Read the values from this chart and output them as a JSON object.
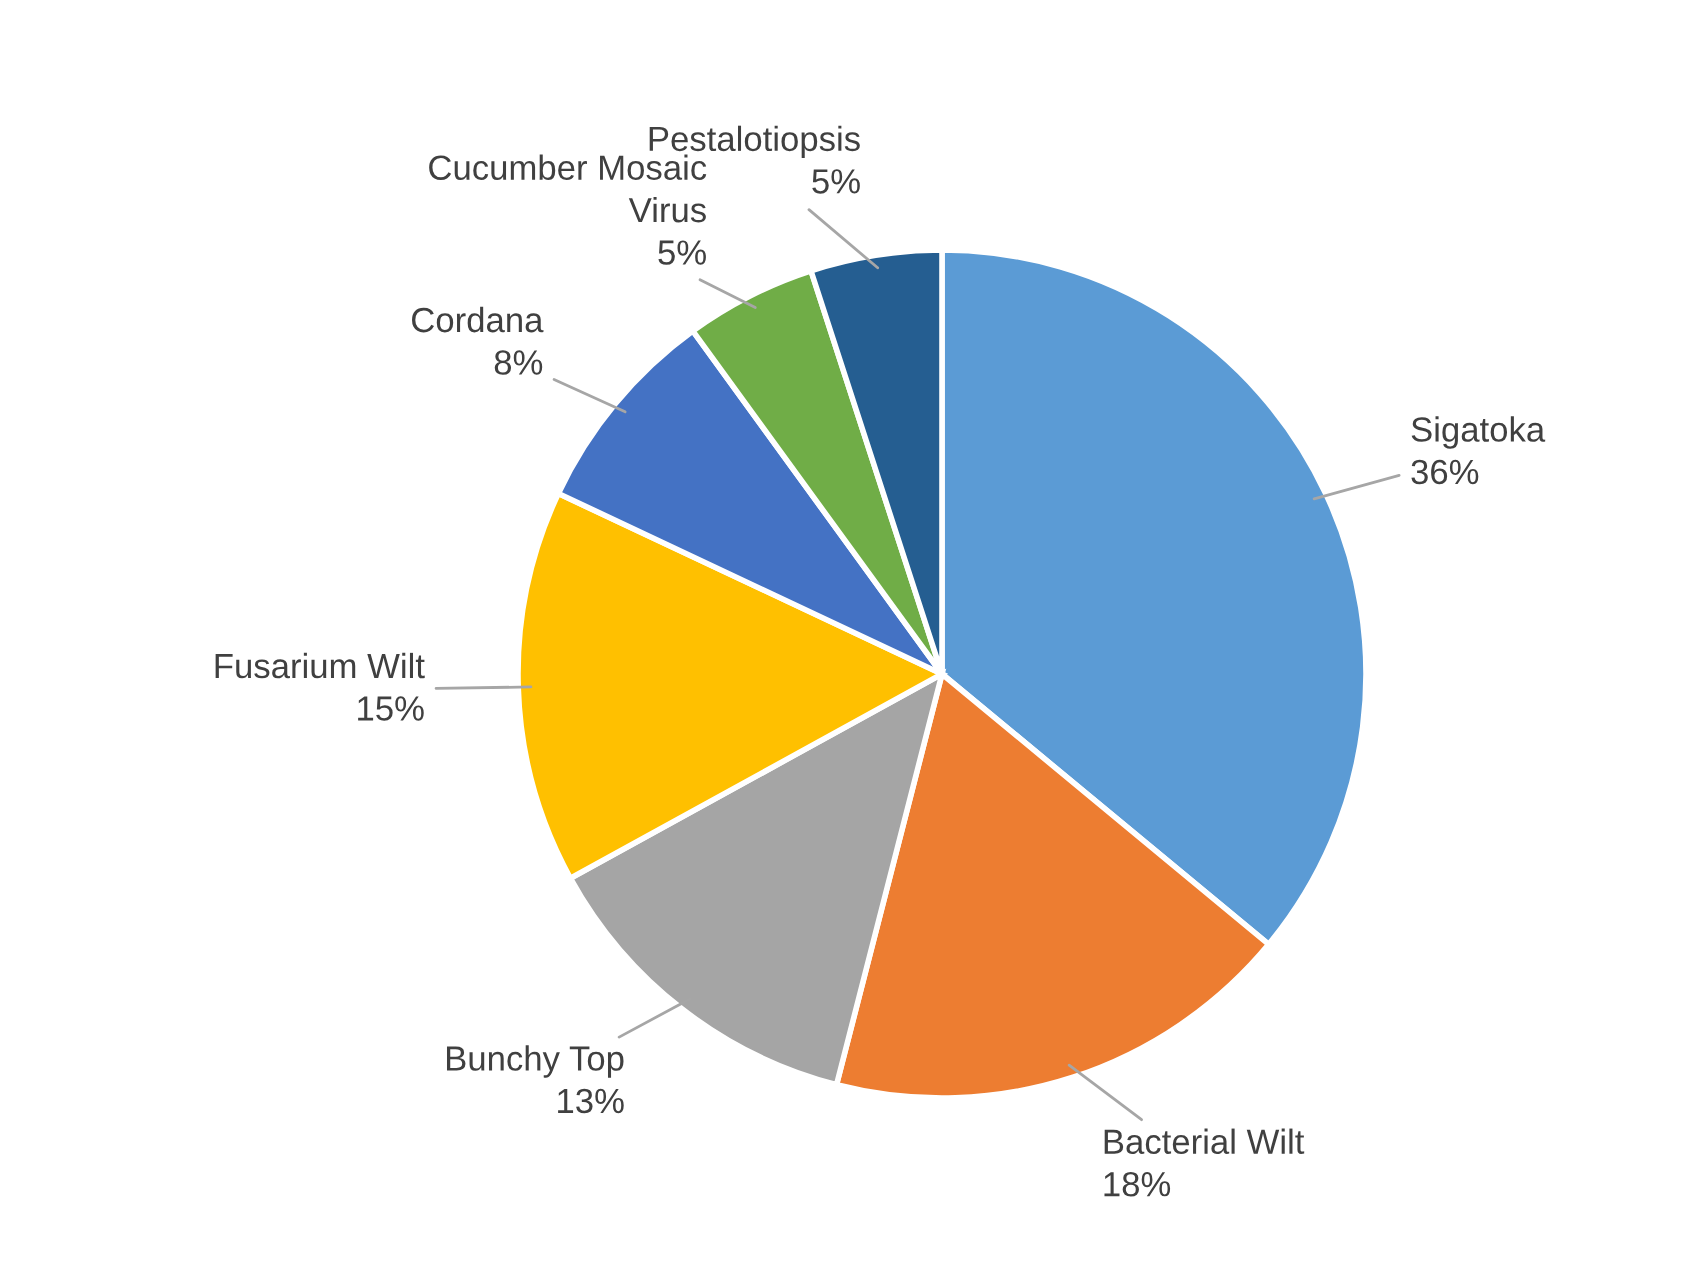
{
  "chart_data": {
    "type": "pie",
    "categories": [
      "Sigatoka",
      "Bacterial Wilt",
      "Bunchy Top",
      "Fusarium Wilt",
      "Cordana",
      "Cucumber Mosaic Virus",
      "Pestalotiopsis"
    ],
    "values": [
      36,
      18,
      13,
      15,
      8,
      5,
      5
    ],
    "colors": [
      "#5b9bd5",
      "#ed7d31",
      "#a5a5a5",
      "#ffc000",
      "#4472c4",
      "#70ad47",
      "#255e91"
    ],
    "value_labels": [
      "36%",
      "18%",
      "13%",
      "15%",
      "8%",
      "5%",
      "5%"
    ]
  }
}
